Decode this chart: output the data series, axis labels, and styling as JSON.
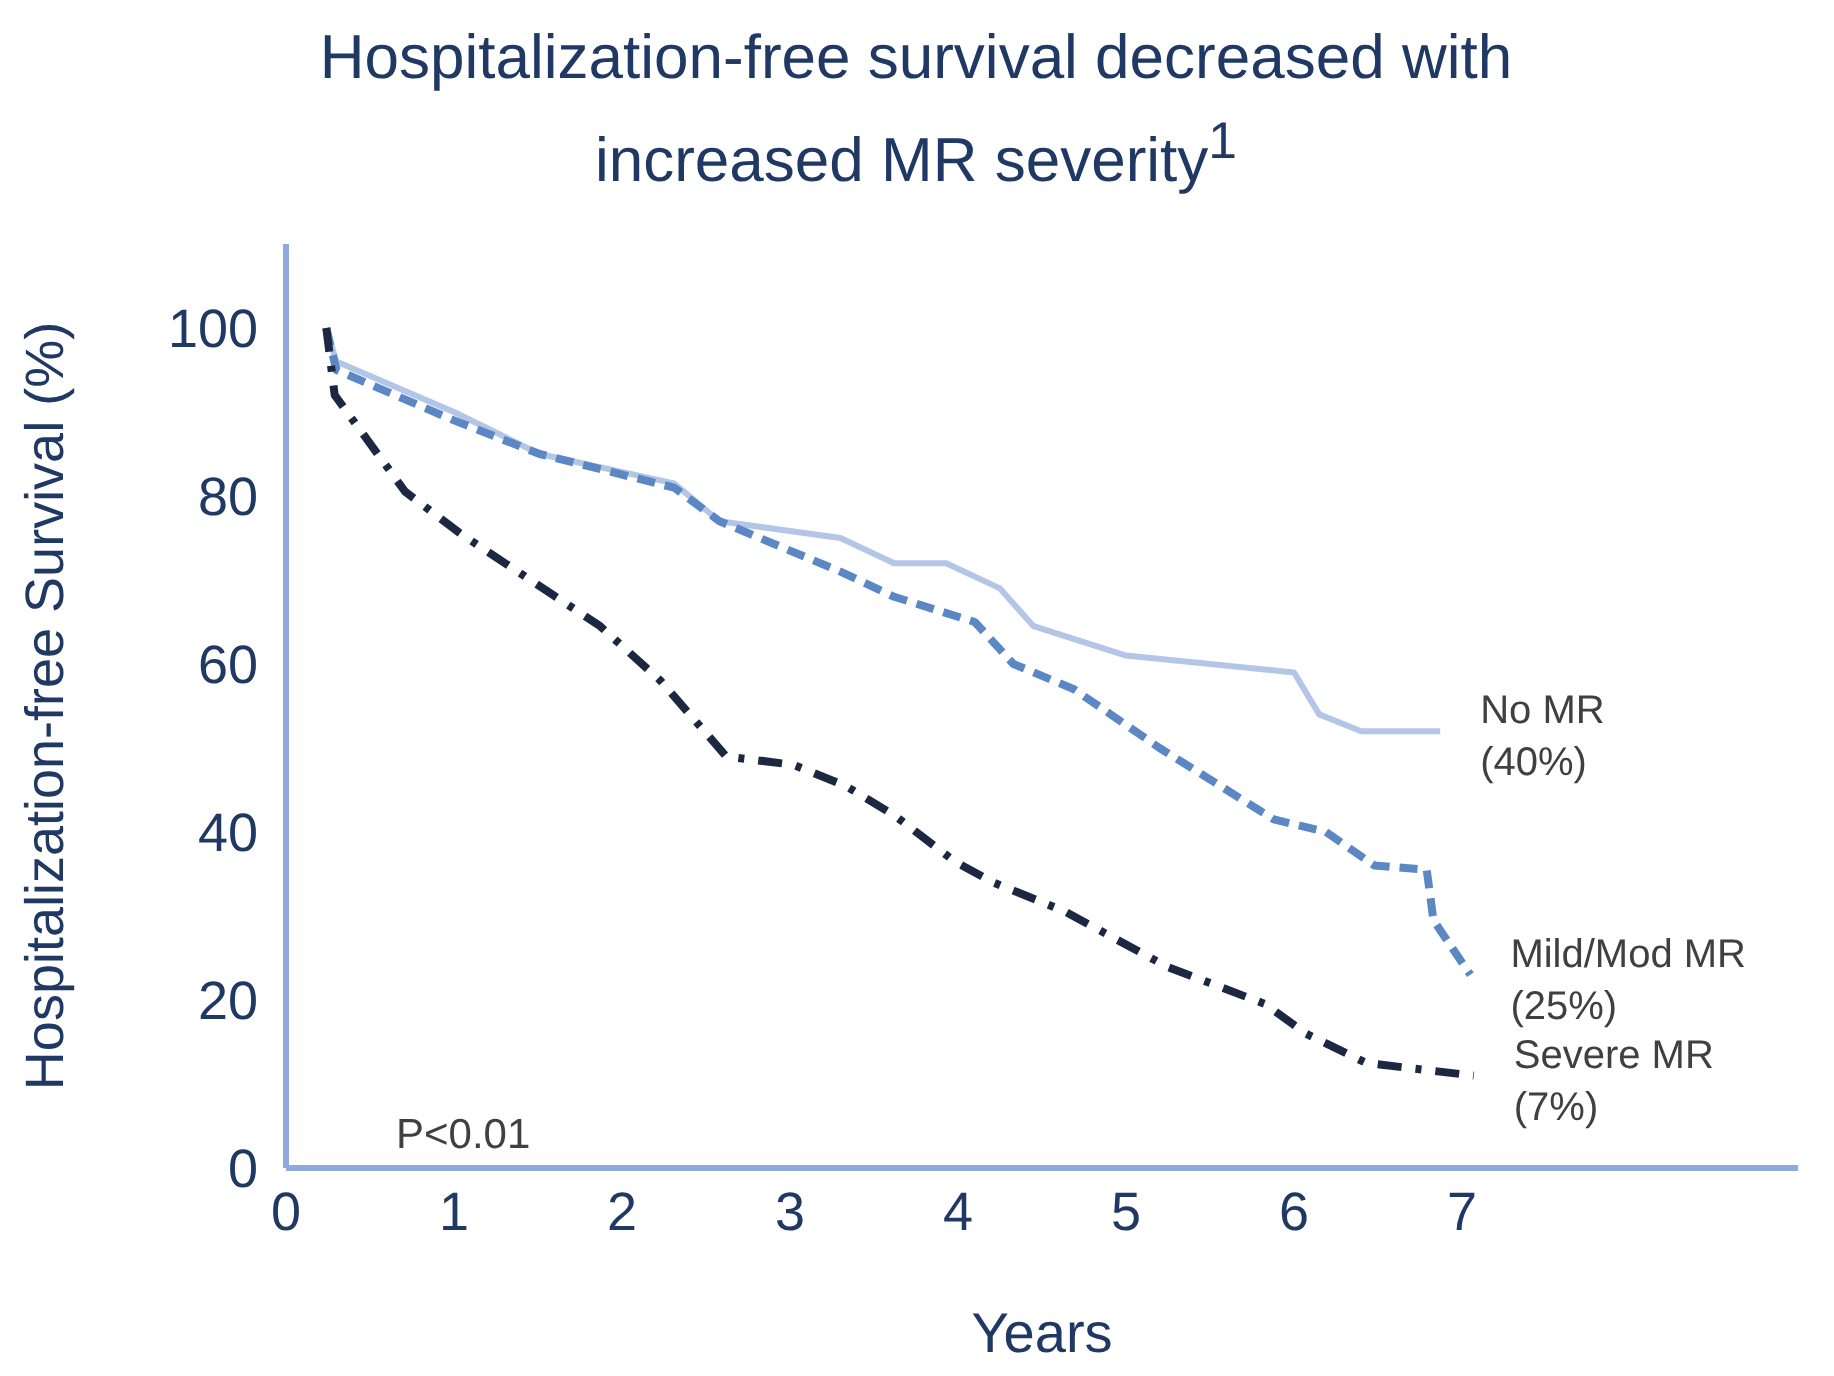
{
  "chart_data": {
    "type": "line",
    "title": "Hospitalization-free survival decreased with increased MR severity$^{1}$",
    "xlabel": "Years",
    "ylabel": "Hospitalization-free Survival (%)",
    "xlim": [
      0,
      9
    ],
    "xticks": [
      0,
      1,
      2,
      3,
      4,
      5,
      6,
      7
    ],
    "ylim": [
      0,
      110
    ],
    "yticks": [
      0,
      20,
      40,
      60,
      80,
      100
    ],
    "grid": false,
    "legend": false,
    "marker": "none",
    "annotations": [
      "P<0.01"
    ],
    "series": [
      {
        "name": "No MR (40%)",
        "color": "#b4c6e7",
        "line_style": "solid",
        "x": [
          0.24,
          0.3,
          1.0,
          1.51,
          2.31,
          2.58,
          3.3,
          3.62,
          3.93,
          4.25,
          4.45,
          5.0,
          6.0,
          6.15,
          6.4,
          6.87
        ],
        "values": [
          100,
          96,
          90,
          85,
          81.5,
          77,
          75,
          72,
          72,
          69,
          64.5,
          61,
          59,
          54,
          52,
          52
        ]
      },
      {
        "name": "Mild/Mod MR (25%)",
        "color": "#5b87c5",
        "line_style": "dashed",
        "x": [
          0.24,
          0.3,
          1.0,
          1.51,
          2.31,
          2.58,
          3.3,
          3.62,
          4.1,
          4.33,
          4.69,
          5.2,
          5.88,
          6.19,
          6.48,
          6.79,
          6.83,
          7.05
        ],
        "values": [
          100,
          95,
          89,
          85,
          81,
          77,
          71,
          68,
          65,
          60,
          57,
          50,
          41.5,
          40,
          36,
          35.5,
          29.5,
          23
        ]
      },
      {
        "name": "Severe MR (7%)",
        "color": "#1c2841",
        "line_style": "dashdot",
        "x": [
          0.24,
          0.29,
          0.71,
          1.04,
          1.87,
          2.23,
          2.62,
          3.02,
          3.33,
          3.62,
          3.98,
          4.21,
          4.64,
          5.24,
          5.83,
          6.07,
          6.43,
          7.07
        ],
        "values": [
          100,
          92,
          80.5,
          75.5,
          64.5,
          58,
          49,
          48,
          45.5,
          42,
          36.5,
          34,
          30.5,
          24,
          19.5,
          16,
          12.5,
          11
        ]
      }
    ]
  }
}
